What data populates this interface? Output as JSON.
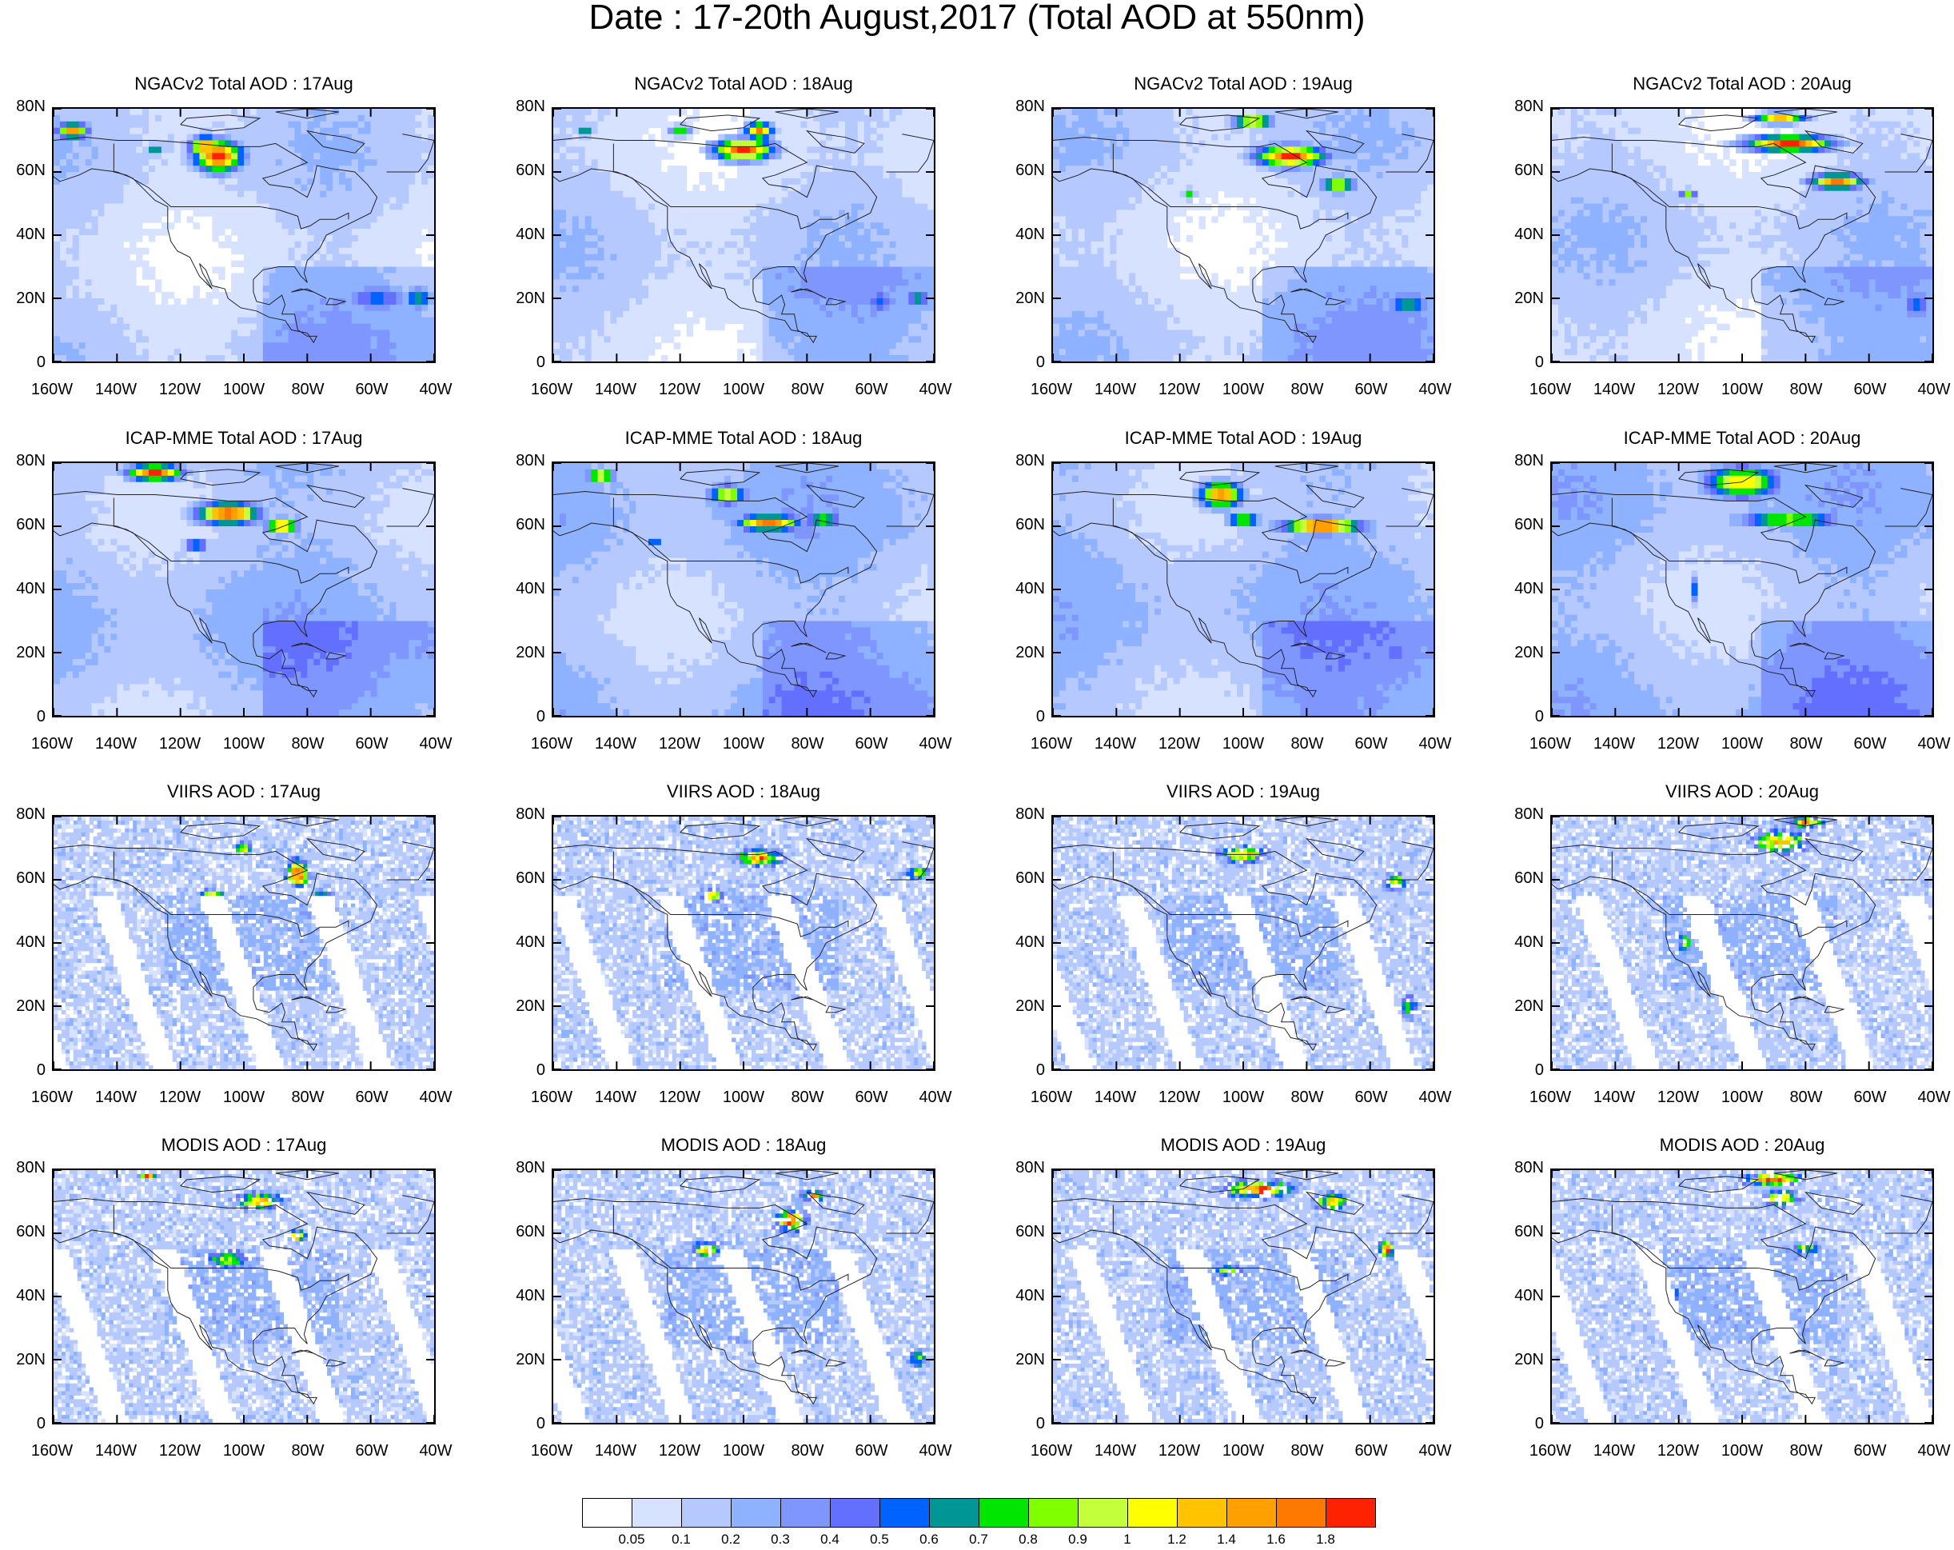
{
  "title": "Date : 17-20th August,2017 (Total AOD at 550nm)",
  "lat_ticks": [
    "80N",
    "60N",
    "40N",
    "20N",
    "0"
  ],
  "lon_ticks": [
    "160W",
    "140W",
    "120W",
    "100W",
    "80W",
    "60W",
    "40W"
  ],
  "colors": {
    "coast": "#222222",
    "scale": [
      "#ffffff",
      "#d6e2ff",
      "#b5c9ff",
      "#8eb2ff",
      "#7f96ff",
      "#6370ff",
      "#0063ff",
      "#009696",
      "#00e600",
      "#7fff00",
      "#c3ff3b",
      "#ffff00",
      "#ffc300",
      "#ffa000",
      "#ff7800",
      "#ff2200"
    ]
  },
  "colorbar": {
    "labels": [
      "0.05",
      "0.1",
      "0.2",
      "0.3",
      "0.4",
      "0.5",
      "0.6",
      "0.7",
      "0.8",
      "0.9",
      "1",
      "1.2",
      "1.4",
      "1.6",
      "1.8"
    ]
  },
  "rows": [
    {
      "name": "NGACv2",
      "kind": "model",
      "titles": [
        "NGACv2 Total AOD : 17Aug",
        "NGACv2 Total AOD : 18Aug",
        "NGACv2 Total AOD : 19Aug",
        "NGACv2 Total AOD : 20Aug"
      ]
    },
    {
      "name": "ICAP-MME",
      "kind": "model",
      "titles": [
        "ICAP-MME Total AOD : 17Aug",
        "ICAP-MME Total AOD : 18Aug",
        "ICAP-MME Total AOD : 19Aug",
        "ICAP-MME Total AOD : 20Aug"
      ]
    },
    {
      "name": "VIIRS",
      "kind": "satellite",
      "titles": [
        "VIIRS AOD : 17Aug",
        "VIIRS AOD : 18Aug",
        "VIIRS AOD : 19Aug",
        "VIIRS AOD : 20Aug"
      ]
    },
    {
      "name": "MODIS",
      "kind": "satellite",
      "titles": [
        "MODIS AOD : 17Aug",
        "MODIS AOD : 18Aug",
        "MODIS AOD : 19Aug",
        "MODIS AOD : 20Aug"
      ]
    }
  ]
}
